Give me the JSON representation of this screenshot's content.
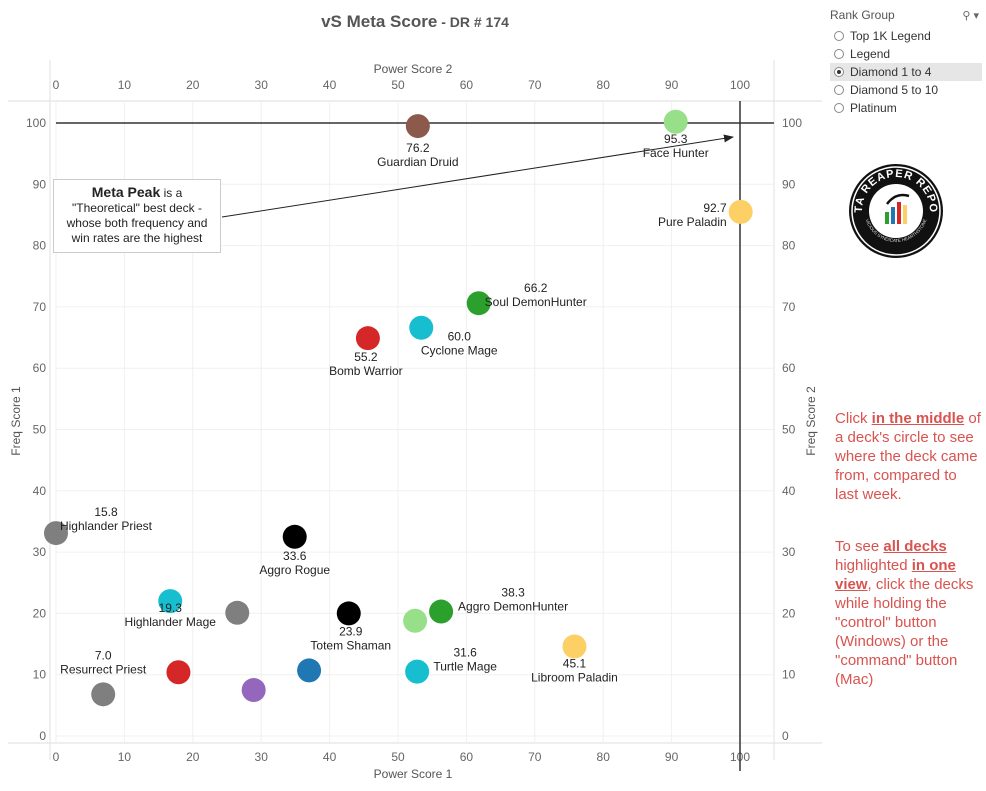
{
  "header": {
    "title": "vS Meta Score",
    "subtitle": " - DR # 174"
  },
  "filter": {
    "title": "Rank Group",
    "options": [
      "Top 1K Legend",
      "Legend",
      "Diamond 1 to 4",
      "Diamond 5 to 10",
      "Platinum"
    ],
    "selected_index": 2
  },
  "callout": {
    "bold": "Meta Peak",
    "text1": " is a",
    "text2": "\"Theoretical\" best deck -",
    "text3": "whose both frequency and",
    "text4": "win rates are the highest"
  },
  "note1": {
    "pre": "Click ",
    "bold": "in the middle",
    "post": " of a deck's circle to see where the deck came from, compared to last week."
  },
  "note2": {
    "pre": "To see ",
    "bold1": "all decks",
    "mid": " highlighted ",
    "bold2": "in one view",
    "post": ", click the decks while holding the \"control\" button (Windows) or the \"command\" button (Mac)"
  },
  "logo": {
    "top_text": "DATA REAPER REPORT",
    "bottom_text": "VICIOUS SYNDICATE HEARTHSTONE"
  },
  "chart_data": {
    "type": "scatter",
    "xlabel_bottom": "Power Score 1",
    "xlabel_top": "Power Score 2",
    "ylabel_left": "Freq Score 1",
    "ylabel_right": "Freq Score 2",
    "xlim": [
      0,
      105
    ],
    "ylim": [
      0,
      105
    ],
    "xticks": [
      0,
      10,
      20,
      30,
      40,
      50,
      60,
      70,
      80,
      90,
      100
    ],
    "yticks": [
      0,
      10,
      20,
      30,
      40,
      50,
      60,
      70,
      80,
      90,
      100
    ],
    "reference_lines": {
      "x": 100,
      "y": 100
    },
    "points": [
      {
        "name": "Guardian Druid",
        "score": "76.2",
        "x": 52.9,
        "y": 99.5,
        "color": "#8b5a4c"
      },
      {
        "name": "Face Hunter",
        "score": "95.3",
        "x": 90.6,
        "y": 100.2,
        "color": "#98df8a"
      },
      {
        "name": "Pure Paladin",
        "score": "92.7",
        "x": 100.1,
        "y": 85.5,
        "color": "#fcd065"
      },
      {
        "name": "Soul DemonHunter",
        "score": "66.2",
        "x": 61.8,
        "y": 70.6,
        "color": "#2ca02c"
      },
      {
        "name": "Bomb Warrior",
        "score": "55.2",
        "x": 45.6,
        "y": 64.9,
        "color": "#d62728"
      },
      {
        "name": "Cyclone Mage",
        "score": "60.0",
        "x": 53.4,
        "y": 66.6,
        "color": "#17becf"
      },
      {
        "name": "Highlander Priest",
        "score": "15.8",
        "x": 0.0,
        "y": 33.1,
        "color": "#7f7f7f"
      },
      {
        "name": "Aggro Rogue",
        "score": "33.6",
        "x": 34.9,
        "y": 32.5,
        "color": "#000000"
      },
      {
        "name": "Highlander Mage",
        "score": "19.3",
        "x": 16.7,
        "y": 22.0,
        "color": "#17becf"
      },
      {
        "name": "",
        "score": "",
        "x": 26.5,
        "y": 20.1,
        "color": "#7f7f7f"
      },
      {
        "name": "Totem Shaman",
        "score": "23.9",
        "x": 42.8,
        "y": 20.0,
        "color": "#000000"
      },
      {
        "name": "",
        "score": "",
        "x": 52.5,
        "y": 18.8,
        "color": "#98df8a"
      },
      {
        "name": "Aggro DemonHunter",
        "score": "38.3",
        "x": 56.3,
        "y": 20.3,
        "color": "#2ca02c"
      },
      {
        "name": "Libroom Paladin",
        "score": "45.1",
        "x": 75.8,
        "y": 14.6,
        "color": "#fcd065"
      },
      {
        "name": "Resurrect Priest",
        "score": "7.0",
        "x": 6.9,
        "y": 6.8,
        "color": "#7f7f7f"
      },
      {
        "name": "",
        "score": "",
        "x": 17.9,
        "y": 10.4,
        "color": "#d62728"
      },
      {
        "name": "",
        "score": "",
        "x": 28.9,
        "y": 7.5,
        "color": "#9467bd"
      },
      {
        "name": "",
        "score": "",
        "x": 37.0,
        "y": 10.7,
        "color": "#1f77b4"
      },
      {
        "name": "Turtle Mage",
        "score": "31.6",
        "x": 52.8,
        "y": 10.5,
        "color": "#17becf"
      }
    ]
  }
}
